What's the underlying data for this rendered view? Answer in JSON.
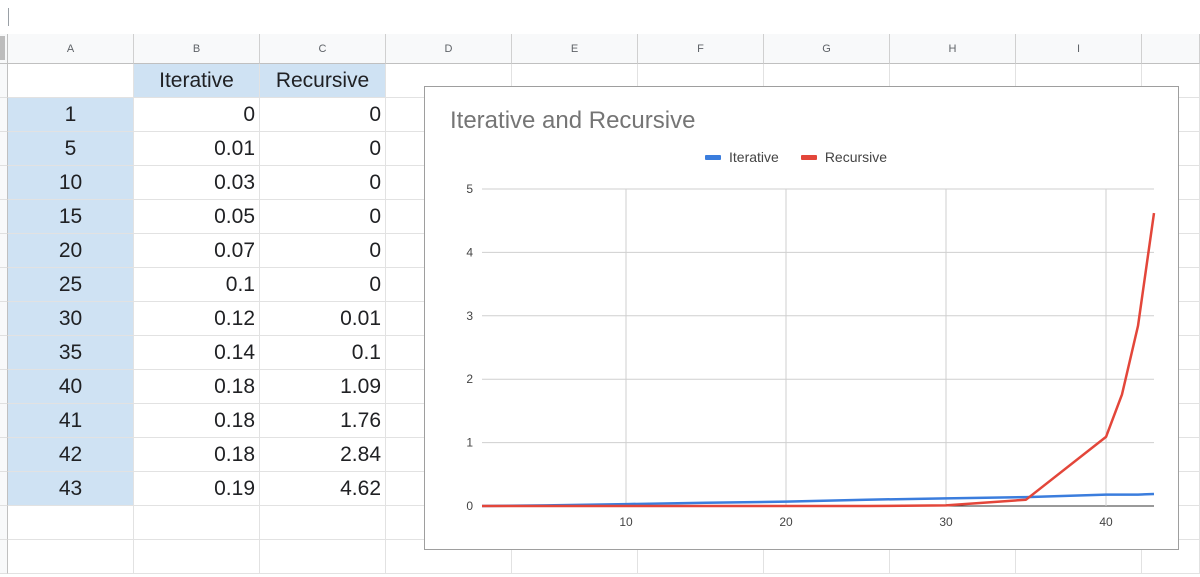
{
  "columns": [
    "A",
    "B",
    "C",
    "D",
    "E",
    "F",
    "G",
    "H",
    "I"
  ],
  "table": {
    "headers": [
      "",
      "Iterative",
      "Recursive"
    ],
    "rows": [
      {
        "n": "1",
        "iterative": "0",
        "recursive": "0"
      },
      {
        "n": "5",
        "iterative": "0.01",
        "recursive": "0"
      },
      {
        "n": "10",
        "iterative": "0.03",
        "recursive": "0"
      },
      {
        "n": "15",
        "iterative": "0.05",
        "recursive": "0"
      },
      {
        "n": "20",
        "iterative": "0.07",
        "recursive": "0"
      },
      {
        "n": "25",
        "iterative": "0.1",
        "recursive": "0"
      },
      {
        "n": "30",
        "iterative": "0.12",
        "recursive": "0.01"
      },
      {
        "n": "35",
        "iterative": "0.14",
        "recursive": "0.1"
      },
      {
        "n": "40",
        "iterative": "0.18",
        "recursive": "1.09"
      },
      {
        "n": "41",
        "iterative": "0.18",
        "recursive": "1.76"
      },
      {
        "n": "42",
        "iterative": "0.18",
        "recursive": "2.84"
      },
      {
        "n": "43",
        "iterative": "0.19",
        "recursive": "4.62"
      }
    ]
  },
  "chart_data": {
    "type": "line",
    "title": "Iterative and Recursive",
    "xlabel": "",
    "ylabel": "",
    "x": [
      1,
      5,
      10,
      15,
      20,
      25,
      30,
      35,
      40,
      41,
      42,
      43
    ],
    "series": [
      {
        "name": "Iterative",
        "color": "#3b7ddd",
        "values": [
          0,
          0.01,
          0.03,
          0.05,
          0.07,
          0.1,
          0.12,
          0.14,
          0.18,
          0.18,
          0.18,
          0.19
        ]
      },
      {
        "name": "Recursive",
        "color": "#e3463a",
        "values": [
          0,
          0,
          0,
          0,
          0,
          0,
          0.01,
          0.1,
          1.09,
          1.76,
          2.84,
          4.62
        ]
      }
    ],
    "xlim": [
      1,
      43
    ],
    "ylim": [
      0,
      5
    ],
    "xticks": [
      10,
      20,
      30,
      40
    ],
    "yticks": [
      0,
      1,
      2,
      3,
      4,
      5
    ],
    "grid": true,
    "legend": "top"
  }
}
